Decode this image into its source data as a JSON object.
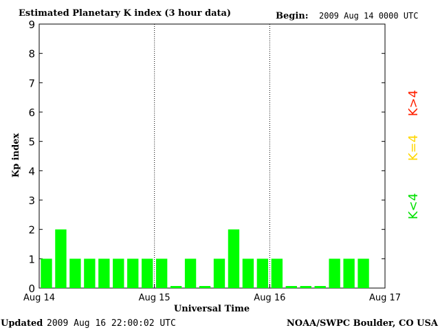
{
  "header": {
    "title": "Estimated Planetary K index (3 hour data)",
    "begin_label": "Begin:",
    "begin_value": "2009 Aug 14 0000 UTC"
  },
  "footer": {
    "updated_label": "Updated",
    "updated_value": "2009 Aug 16 22:00:02 UTC",
    "source": "NOAA/SWPC Boulder, CO USA"
  },
  "legend": {
    "items": [
      {
        "label": "K>4",
        "color": "#ff2000"
      },
      {
        "label": "K=4",
        "color": "#ffd700"
      },
      {
        "label": "K<4",
        "color": "#00e000"
      }
    ]
  },
  "chart_data": {
    "type": "bar",
    "title": "Estimated Planetary K index (3 hour data)",
    "xlabel": "Universal Time",
    "ylabel": "Kp index",
    "ylim": [
      0,
      9
    ],
    "xlim": [
      0,
      72
    ],
    "yticks": [
      0,
      1,
      2,
      3,
      4,
      5,
      6,
      7,
      8,
      9
    ],
    "xticks": [
      {
        "hour": 0,
        "label": "Aug 14"
      },
      {
        "hour": 24,
        "label": "Aug 15"
      },
      {
        "hour": 48,
        "label": "Aug 16"
      },
      {
        "hour": 72,
        "label": "Aug 17"
      }
    ],
    "day_dividers_hours": [
      24,
      48
    ],
    "bar_interval_hours": 3,
    "values": [
      1,
      2,
      1,
      1,
      1,
      1,
      1,
      1,
      1,
      0,
      1,
      0,
      1,
      2,
      1,
      1,
      1,
      0,
      0,
      0,
      1,
      1,
      1
    ],
    "bar_color": "#00ff00",
    "grid": false
  }
}
